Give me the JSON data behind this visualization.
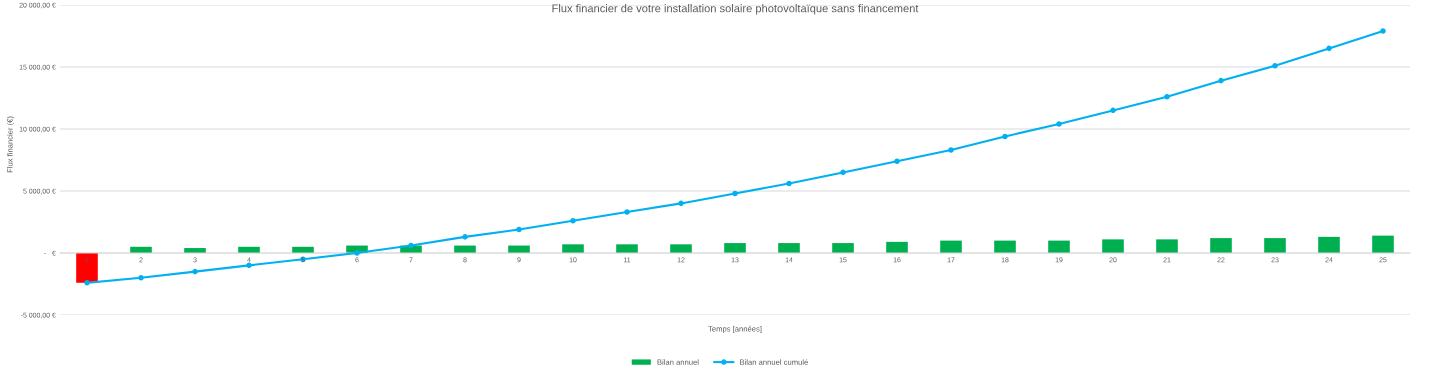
{
  "chart_data": {
    "type": "bar",
    "title": "Flux financier de votre installation solaire photovoltaïque sans financement",
    "xlabel": "Temps [années]",
    "ylabel": "Flux financier (€)",
    "categories": [
      "1",
      "2",
      "3",
      "4",
      "5",
      "6",
      "7",
      "8",
      "9",
      "10",
      "11",
      "12",
      "13",
      "14",
      "15",
      "16",
      "17",
      "18",
      "19",
      "20",
      "21",
      "22",
      "23",
      "24",
      "25"
    ],
    "series": [
      {
        "name": "Bilan annuel",
        "color": "#00b050",
        "colors": [
          "#ff0000",
          "#00b050",
          "#00b050",
          "#00b050",
          "#00b050",
          "#00b050",
          "#00b050",
          "#00b050",
          "#00b050",
          "#00b050",
          "#00b050",
          "#00b050",
          "#00b050",
          "#00b050",
          "#00b050",
          "#00b050",
          "#00b050",
          "#00b050",
          "#00b050",
          "#00b050",
          "#00b050",
          "#00b050",
          "#00b050",
          "#00b050",
          "#00b050"
        ],
        "values": [
          -2400,
          500,
          400,
          500,
          500,
          600,
          600,
          600,
          600,
          700,
          700,
          700,
          800,
          800,
          800,
          900,
          1000,
          1000,
          1000,
          1100,
          1100,
          1200,
          1200,
          1300,
          1400
        ]
      },
      {
        "name": "Bilan annuel cumulé",
        "type": "line",
        "color": "#00b0f0",
        "marker": "circle",
        "values": [
          -2400,
          -2000,
          -1500,
          -1000,
          -500,
          0,
          600,
          1300,
          1900,
          2600,
          3300,
          4000,
          4800,
          5600,
          6500,
          7400,
          8300,
          9400,
          10400,
          11500,
          12600,
          13900,
          15100,
          16500,
          17900
        ]
      }
    ],
    "ylim": [
      -5000,
      20000
    ],
    "yticks": [
      {
        "value": -5000,
        "label": "-5 000,00 €"
      },
      {
        "value": 0,
        "label": "-   €"
      },
      {
        "value": 5000,
        "label": "5 000,00 €"
      },
      {
        "value": 10000,
        "label": "10 000,00 €"
      },
      {
        "value": 15000,
        "label": "15 000,00 €"
      },
      {
        "value": 20000,
        "label": "20 000,00 €"
      }
    ],
    "grid": "y",
    "legend": "bottom",
    "line_style": "solid"
  }
}
